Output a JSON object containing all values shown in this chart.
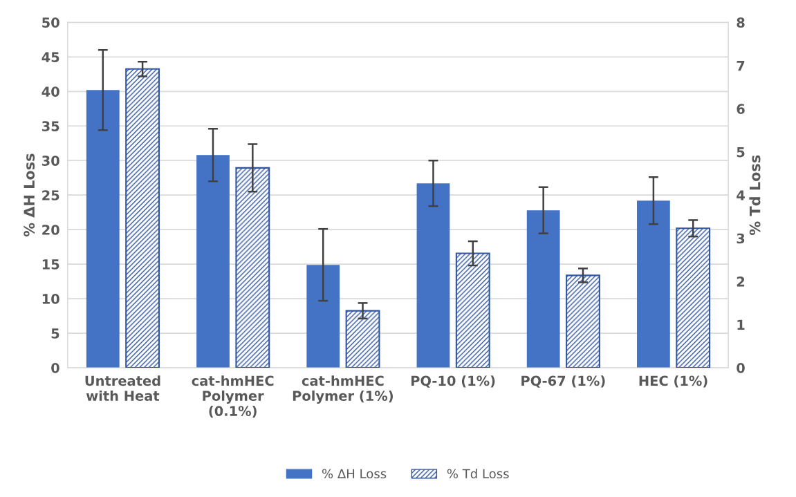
{
  "chart_data": {
    "type": "bar",
    "categories": [
      "Untreated\nwith Heat",
      "cat-hmHEC\nPolymer\n(0.1%)",
      "cat-hmHEC\nPolymer (1%)",
      "PQ-10 (1%)",
      "PQ-67 (1%)",
      "HEC (1%)"
    ],
    "ylabel": "% ΔH Loss",
    "y2label": "% Td Loss",
    "ylim": [
      0,
      50
    ],
    "yticks": [
      0,
      5,
      10,
      15,
      20,
      25,
      30,
      35,
      40,
      45,
      50
    ],
    "y2lim": [
      0,
      8
    ],
    "y2ticks": [
      0,
      1,
      2,
      3,
      4,
      5,
      6,
      7,
      8
    ],
    "grid": "y",
    "legend": "bottom",
    "series": [
      {
        "name": "% ΔH Loss",
        "color": "#4472c4",
        "values": [
          40.2,
          30.8,
          14.9,
          26.7,
          22.8,
          24.2
        ],
        "errors": [
          5.8,
          3.8,
          5.2,
          3.3,
          3.35,
          3.4
        ]
      },
      {
        "name": "% Td Loss",
        "color": "#2f55a4",
        "axis": "y2",
        "values": [
          6.92,
          4.63,
          1.32,
          2.65,
          2.14,
          3.23
        ],
        "errors": [
          0.17,
          0.55,
          0.18,
          0.28,
          0.16,
          0.19
        ]
      }
    ]
  }
}
